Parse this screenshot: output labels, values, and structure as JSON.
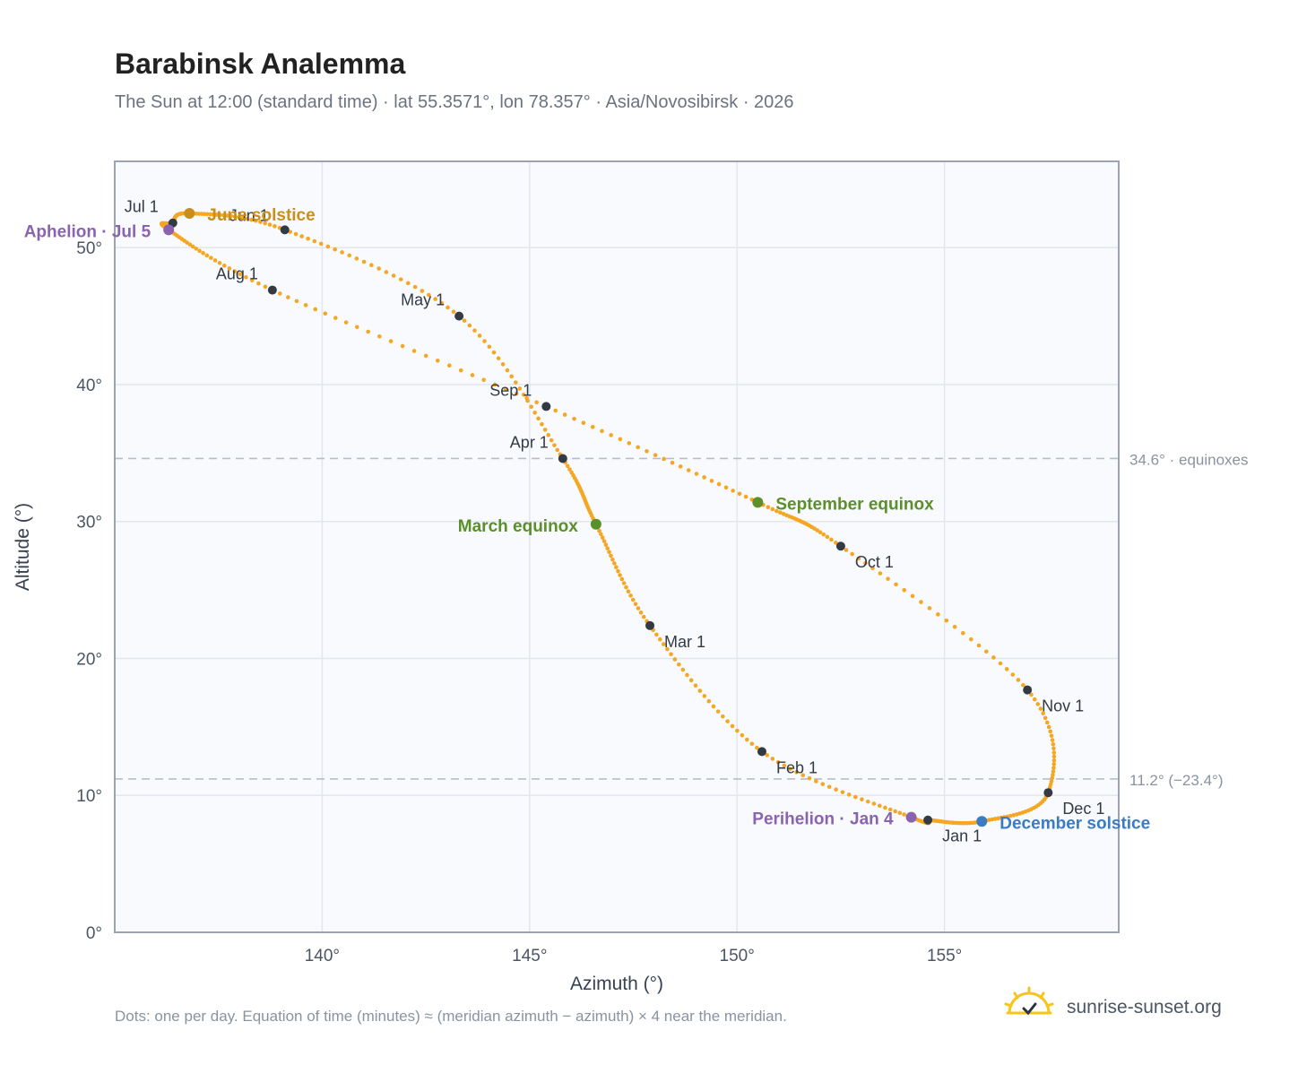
{
  "title": "Barabinsk Analemma",
  "subtitle": "The Sun at 12:00 (standard time) · lat 55.3571°, lon 78.357° · Asia/Novosibirsk · 2026",
  "footnote": "Dots: one per day. Equation of time (minutes) ≈ (meridian azimuth − azimuth) × 4 near the meridian.",
  "brand": {
    "name": "sunrise-sunset.org",
    "icon": "sun-check-icon"
  },
  "colors": {
    "curve": "#f5a623",
    "month_marker": "#333a44",
    "equinox": "#5a8f29",
    "solstice_june": "#c8901a",
    "solstice_december": "#3b7bc4",
    "apsis": "#8a63b0",
    "reference_line": "#b8bec8",
    "grid": "#e3e7ed",
    "plot_bg": "#f8fafd",
    "frame": "#9aa3b2"
  },
  "chart_data": {
    "type": "scatter",
    "xlabel": "Azimuth (°)",
    "ylabel": "Altitude (°)",
    "xlim": [
      135,
      159.2
    ],
    "ylim": [
      0,
      56.3
    ],
    "x_ticks": [
      {
        "v": 140,
        "label": "140°"
      },
      {
        "v": 145,
        "label": "145°"
      },
      {
        "v": 150,
        "label": "150°"
      },
      {
        "v": 155,
        "label": "155°"
      }
    ],
    "y_ticks": [
      {
        "v": 0,
        "label": "0°"
      },
      {
        "v": 10,
        "label": "10°"
      },
      {
        "v": 20,
        "label": "20°"
      },
      {
        "v": 30,
        "label": "30°"
      },
      {
        "v": 40,
        "label": "40°"
      },
      {
        "v": 50,
        "label": "50°"
      }
    ],
    "grid": true,
    "series_description": "one point per day",
    "path_points": [
      {
        "date": "Jan 1",
        "x": 154.6,
        "y": 8.2
      },
      {
        "date": "Jan 4",
        "x": 154.2,
        "y": 8.4
      },
      {
        "date": "Feb 1",
        "x": 150.6,
        "y": 13.2
      },
      {
        "date": "Mar 1",
        "x": 147.9,
        "y": 22.4
      },
      {
        "date": "Mar 20",
        "x": 146.6,
        "y": 29.8
      },
      {
        "date": "Apr 1",
        "x": 145.8,
        "y": 34.6
      },
      {
        "date": "May 1",
        "x": 143.3,
        "y": 45.0
      },
      {
        "date": "Jun 1",
        "x": 139.1,
        "y": 51.3
      },
      {
        "date": "Jun 21",
        "x": 136.8,
        "y": 52.5
      },
      {
        "date": "Jul 1",
        "x": 136.4,
        "y": 51.8
      },
      {
        "date": "Jul 5",
        "x": 136.3,
        "y": 51.3
      },
      {
        "date": "Aug 1",
        "x": 138.8,
        "y": 46.9
      },
      {
        "date": "Sep 1",
        "x": 145.4,
        "y": 38.4
      },
      {
        "date": "Sep 23",
        "x": 150.5,
        "y": 31.4
      },
      {
        "date": "Oct 1",
        "x": 152.5,
        "y": 28.2
      },
      {
        "date": "Nov 1",
        "x": 157.0,
        "y": 17.7
      },
      {
        "date": "Dec 1",
        "x": 157.5,
        "y": 10.2
      },
      {
        "date": "Dec 21",
        "x": 155.9,
        "y": 8.1
      },
      {
        "date": "Jan 1",
        "x": 154.6,
        "y": 8.2
      }
    ],
    "month_markers": [
      {
        "label": "Jan 1",
        "x": 154.6,
        "y": 8.2
      },
      {
        "label": "Feb 1",
        "x": 150.6,
        "y": 13.2
      },
      {
        "label": "Mar 1",
        "x": 147.9,
        "y": 22.4
      },
      {
        "label": "Apr 1",
        "x": 145.8,
        "y": 34.6
      },
      {
        "label": "May 1",
        "x": 143.3,
        "y": 45.0
      },
      {
        "label": "Jun 1",
        "x": 139.1,
        "y": 51.3
      },
      {
        "label": "Jul 1",
        "x": 136.4,
        "y": 51.8
      },
      {
        "label": "Aug 1",
        "x": 138.8,
        "y": 46.9
      },
      {
        "label": "Sep 1",
        "x": 145.4,
        "y": 38.4
      },
      {
        "label": "Oct 1",
        "x": 152.5,
        "y": 28.2
      },
      {
        "label": "Nov 1",
        "x": 157.0,
        "y": 17.7
      },
      {
        "label": "Dec 1",
        "x": 157.5,
        "y": 10.2
      }
    ],
    "events": [
      {
        "label": "March equinox",
        "x": 146.6,
        "y": 29.8,
        "kind": "equinox"
      },
      {
        "label": "September equinox",
        "x": 150.5,
        "y": 31.4,
        "kind": "equinox"
      },
      {
        "label": "June solstice",
        "x": 136.8,
        "y": 52.5,
        "kind": "solstice_june"
      },
      {
        "label": "December solstice",
        "x": 155.9,
        "y": 8.1,
        "kind": "solstice_december"
      },
      {
        "label": "Aphelion · Jul 5",
        "x": 136.3,
        "y": 51.3,
        "kind": "apsis"
      },
      {
        "label": "Perihelion · Jan 4",
        "x": 154.2,
        "y": 8.4,
        "kind": "apsis"
      }
    ],
    "reference_lines": [
      {
        "y": 34.6,
        "label": "34.6° · equinoxes"
      },
      {
        "y": 11.2,
        "label": "11.2° (−23.4°)"
      }
    ]
  }
}
